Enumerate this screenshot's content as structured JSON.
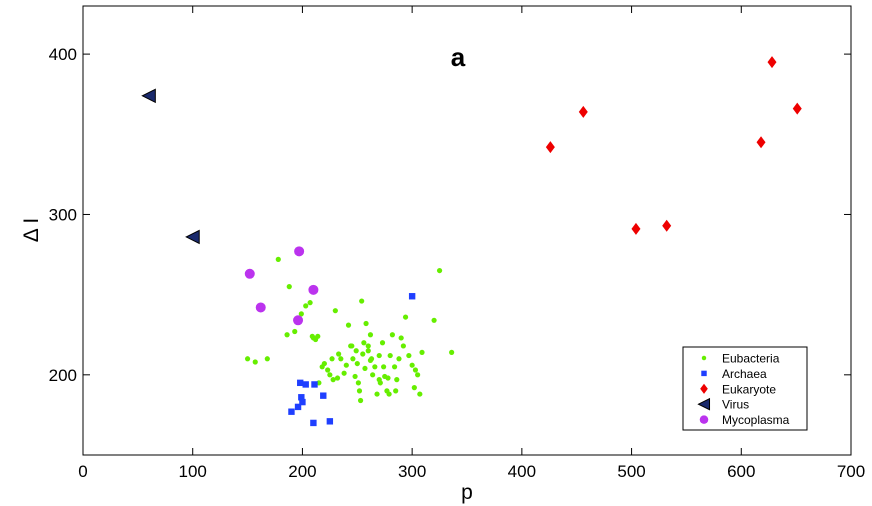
{
  "chart_data": {
    "type": "scatter",
    "title": "",
    "panel_label": "a",
    "xlabel": "p",
    "ylabel": "Δ I",
    "xlim": [
      0,
      700
    ],
    "ylim": [
      150,
      430
    ],
    "xticks": [
      0,
      100,
      200,
      300,
      400,
      500,
      600,
      700
    ],
    "yticks": [
      200,
      300,
      400
    ],
    "grid": false,
    "legend_position": "bottom-right",
    "series": [
      {
        "name": "Eubacteria",
        "marker": "dot",
        "color": "#66ee00",
        "points": [
          [
            150,
            210
          ],
          [
            157,
            208
          ],
          [
            168,
            210
          ],
          [
            178,
            272
          ],
          [
            186,
            225
          ],
          [
            188,
            255
          ],
          [
            193,
            227
          ],
          [
            199,
            238
          ],
          [
            203,
            243
          ],
          [
            207,
            245
          ],
          [
            209,
            224
          ],
          [
            212,
            222
          ],
          [
            214,
            224
          ],
          [
            218,
            205
          ],
          [
            220,
            207
          ],
          [
            223,
            203
          ],
          [
            225,
            200
          ],
          [
            227,
            210
          ],
          [
            228,
            197
          ],
          [
            232,
            198
          ],
          [
            233,
            213
          ],
          [
            235,
            210
          ],
          [
            238,
            201
          ],
          [
            240,
            206
          ],
          [
            242,
            231
          ],
          [
            244,
            218
          ],
          [
            246,
            210
          ],
          [
            248,
            199
          ],
          [
            249,
            215
          ],
          [
            250,
            207
          ],
          [
            251,
            195
          ],
          [
            252,
            190
          ],
          [
            253,
            184
          ],
          [
            254,
            246
          ],
          [
            255,
            213
          ],
          [
            256,
            220
          ],
          [
            257,
            204
          ],
          [
            258,
            232
          ],
          [
            260,
            218
          ],
          [
            262,
            225
          ],
          [
            263,
            210
          ],
          [
            264,
            200
          ],
          [
            266,
            205
          ],
          [
            268,
            188
          ],
          [
            270,
            212
          ],
          [
            271,
            195
          ],
          [
            273,
            220
          ],
          [
            274,
            205
          ],
          [
            275,
            199
          ],
          [
            277,
            190
          ],
          [
            278,
            198
          ],
          [
            279,
            188
          ],
          [
            280,
            212
          ],
          [
            282,
            225
          ],
          [
            284,
            205
          ],
          [
            286,
            197
          ],
          [
            288,
            210
          ],
          [
            290,
            223
          ],
          [
            292,
            218
          ],
          [
            294,
            236
          ],
          [
            297,
            212
          ],
          [
            300,
            206
          ],
          [
            302,
            192
          ],
          [
            303,
            203
          ],
          [
            305,
            200
          ],
          [
            307,
            188
          ],
          [
            309,
            214
          ],
          [
            320,
            234
          ],
          [
            325,
            265
          ],
          [
            336,
            214
          ],
          [
            210,
            223
          ],
          [
            215,
            195
          ],
          [
            230,
            240
          ],
          [
            245,
            218
          ],
          [
            262,
            209
          ],
          [
            270,
            197
          ],
          [
            285,
            190
          ],
          [
            260,
            215
          ]
        ]
      },
      {
        "name": "Archaea",
        "marker": "square",
        "color": "#1f3fff",
        "points": [
          [
            190,
            177
          ],
          [
            196,
            180
          ],
          [
            198,
            195
          ],
          [
            199,
            186
          ],
          [
            200,
            183
          ],
          [
            203,
            194
          ],
          [
            210,
            170
          ],
          [
            211,
            194
          ],
          [
            219,
            187
          ],
          [
            225,
            171
          ],
          [
            300,
            249
          ]
        ]
      },
      {
        "name": "Eukaryote",
        "marker": "diamond",
        "color": "#ee0000",
        "points": [
          [
            426,
            342
          ],
          [
            456,
            364
          ],
          [
            504,
            291
          ],
          [
            532,
            293
          ],
          [
            618,
            345
          ],
          [
            628,
            395
          ],
          [
            651,
            366
          ]
        ]
      },
      {
        "name": "Virus",
        "marker": "triangle-left",
        "color": "#1a2a6c",
        "points": [
          [
            60,
            374
          ],
          [
            100,
            286
          ]
        ]
      },
      {
        "name": "Mycoplasma",
        "marker": "circle",
        "color": "#bb33ee",
        "points": [
          [
            152,
            263
          ],
          [
            162,
            242
          ],
          [
            196,
            234
          ],
          [
            197,
            277
          ],
          [
            210,
            253
          ]
        ]
      }
    ]
  }
}
